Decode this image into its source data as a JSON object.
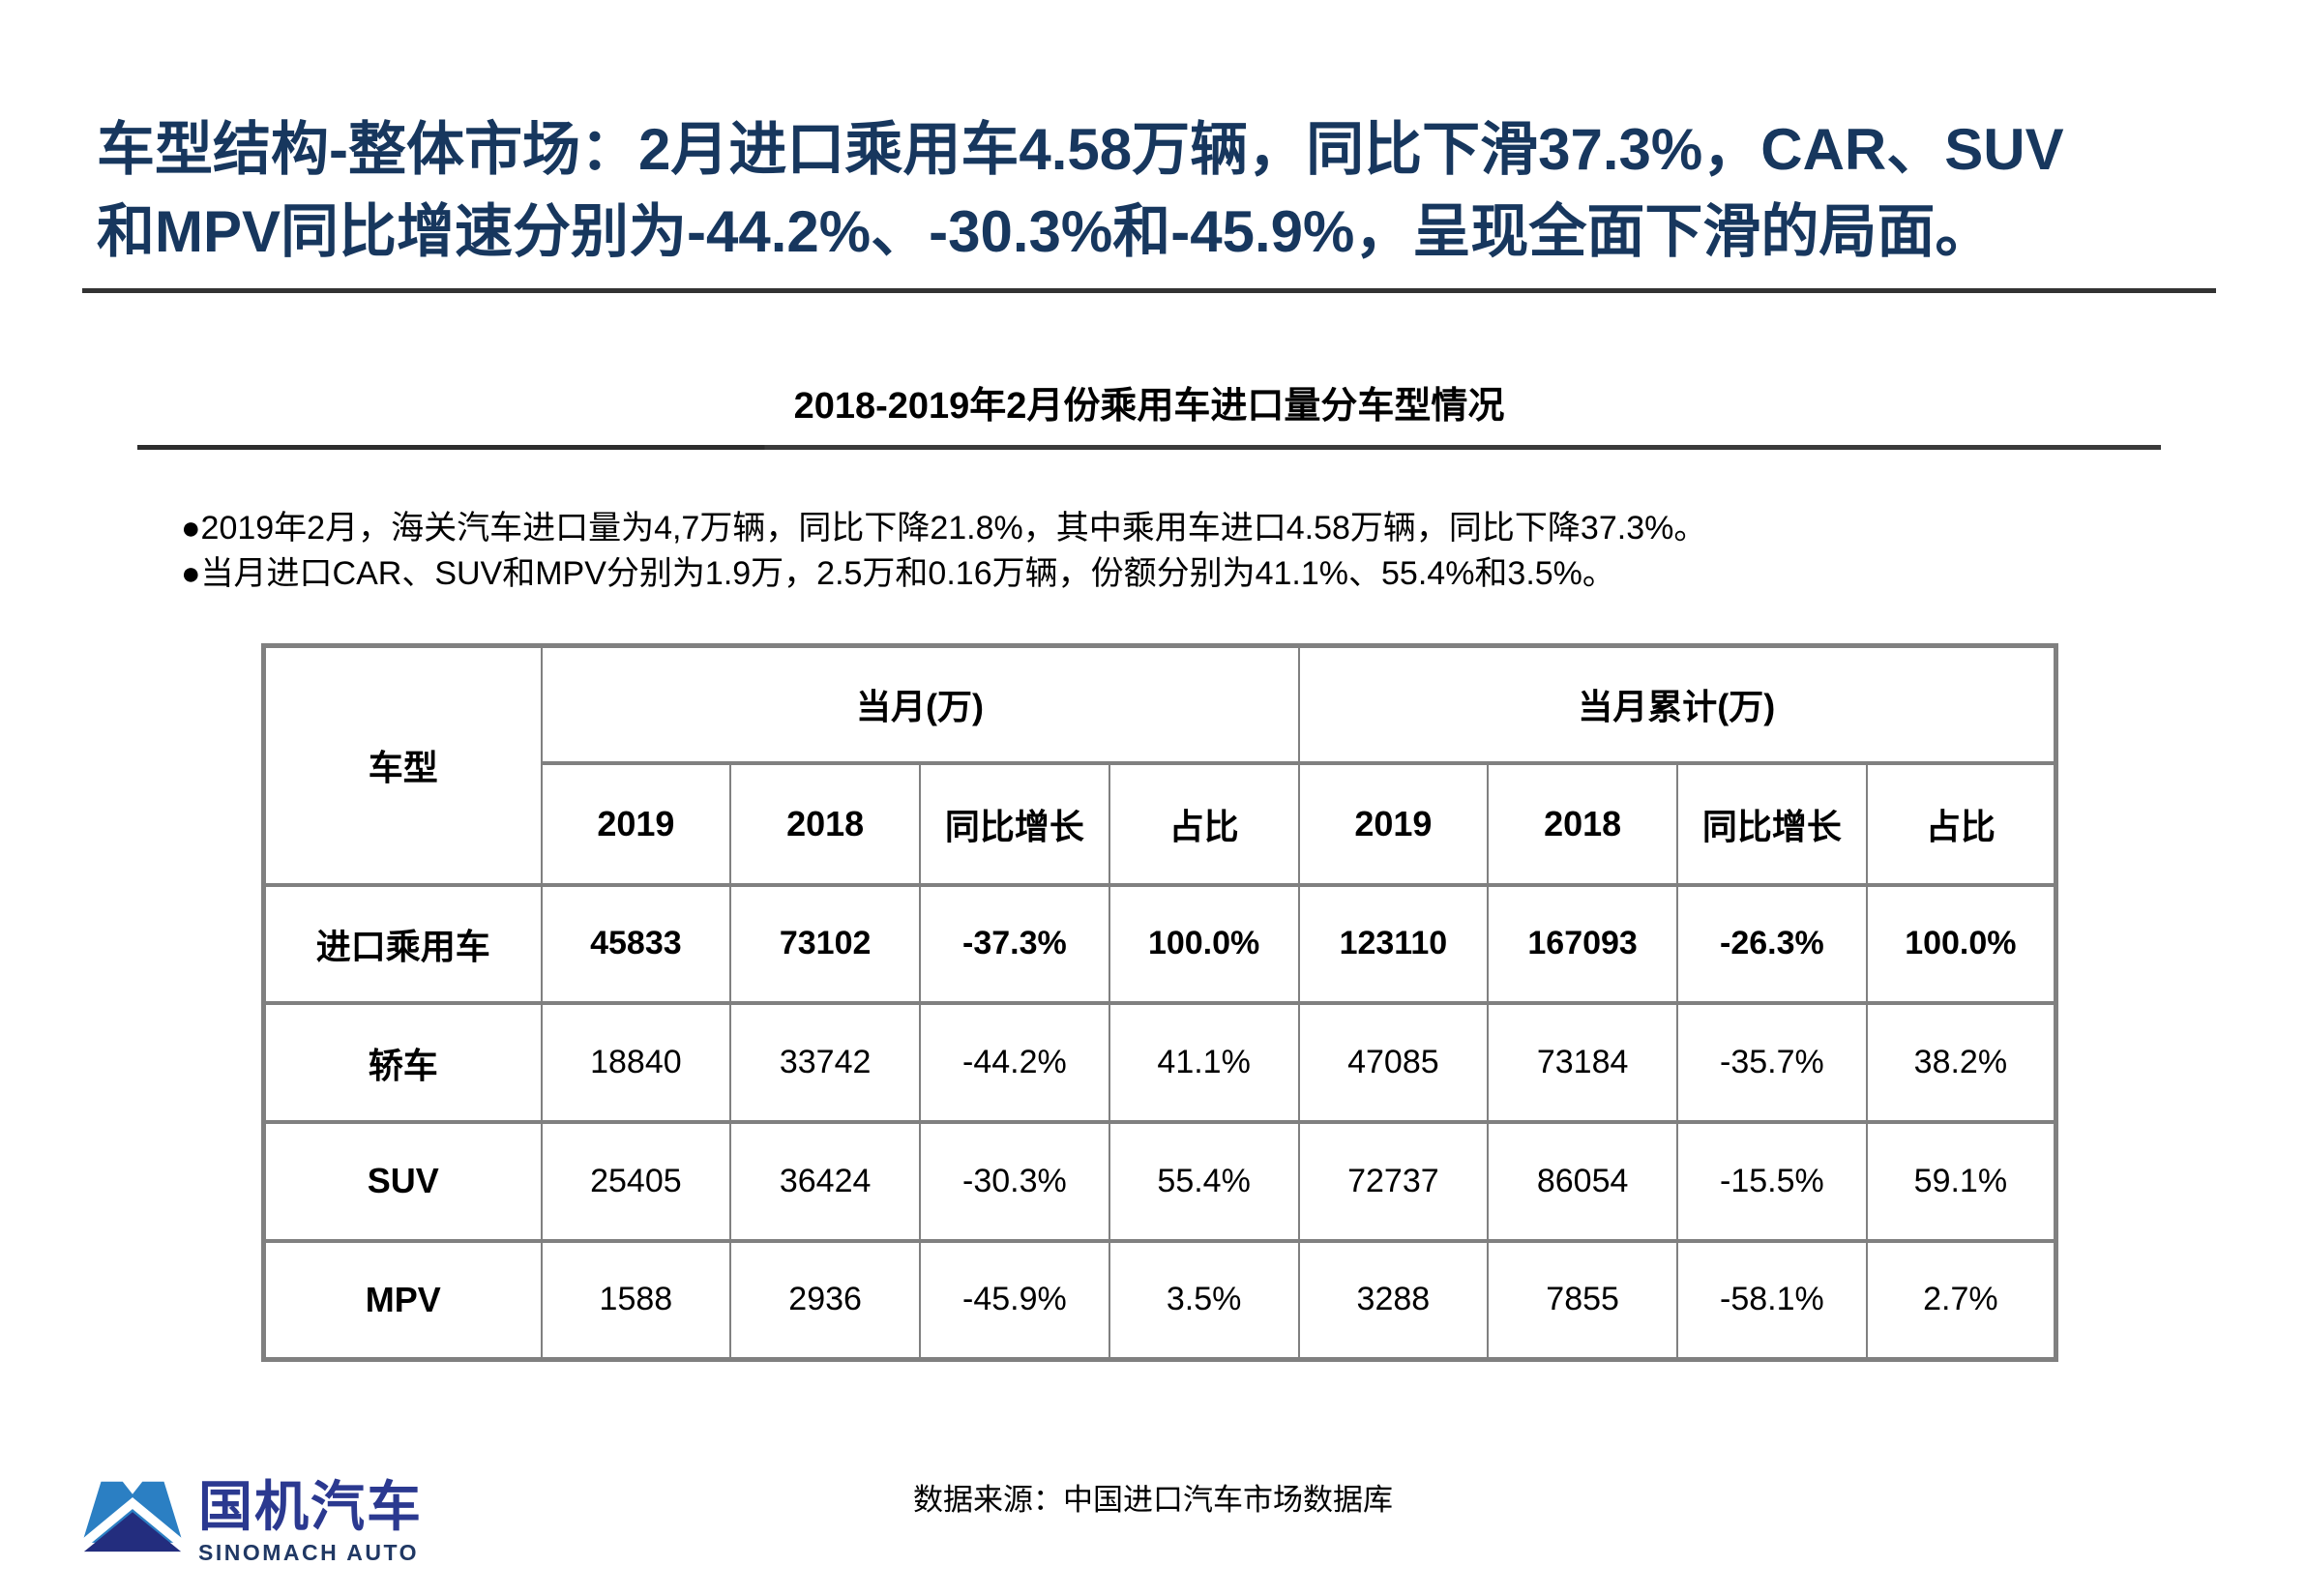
{
  "slide": {
    "title_line1": "车型结构-整体市场：2月进口乘用车4.58万辆，同比下滑37.3%，CAR、SUV",
    "title_line2": "和MPV同比增速分别为-44.2%、-30.3%和-45.9%，呈现全面下滑的局面。",
    "subtitle": "2018-2019年2月份乘用车进口量分车型情况",
    "bullets": [
      "●2019年2月，海关汽车进口量为4,7万辆，同比下降21.8%，其中乘用车进口4.58万辆，同比下降37.3%。",
      "●当月进口CAR、SUV和MPV分别为1.9万，2.5万和0.16万辆，份额分别为41.1%、55.4%和3.5%。"
    ],
    "source": "数据来源：中国进口汽车市场数据库"
  },
  "table": {
    "corner_header": "车型",
    "group_headers": [
      "当月(万)",
      "当月累计(万)"
    ],
    "sub_headers": [
      "2019",
      "2018",
      "同比增长",
      "占比",
      "2019",
      "2018",
      "同比增长",
      "占比"
    ],
    "rows": [
      {
        "label": "进口乘用车",
        "bold": true,
        "values": [
          "45833",
          "73102",
          "-37.3%",
          "100.0%",
          "123110",
          "167093",
          "-26.3%",
          "100.0%"
        ]
      },
      {
        "label": "轿车",
        "bold": false,
        "values": [
          "18840",
          "33742",
          "-44.2%",
          "41.1%",
          "47085",
          "73184",
          "-35.7%",
          "38.2%"
        ]
      },
      {
        "label": "SUV",
        "bold": false,
        "values": [
          "25405",
          "36424",
          "-30.3%",
          "55.4%",
          "72737",
          "86054",
          "-15.5%",
          "59.1%"
        ]
      },
      {
        "label": "MPV",
        "bold": false,
        "values": [
          "1588",
          "2936",
          "-45.9%",
          "3.5%",
          "3288",
          "7855",
          "-58.1%",
          "2.7%"
        ]
      }
    ]
  },
  "logo": {
    "cn": "国机汽车",
    "en": "SINOMACH AUTO"
  },
  "colors": {
    "title_navy": "#17375e",
    "rule_dark": "#333333",
    "table_border": "#808080",
    "logo_blue": "#2b7fc3",
    "logo_navy": "#232d7e",
    "logo_cn_blue": "#2b3990",
    "logo_en_navy": "#203864"
  }
}
